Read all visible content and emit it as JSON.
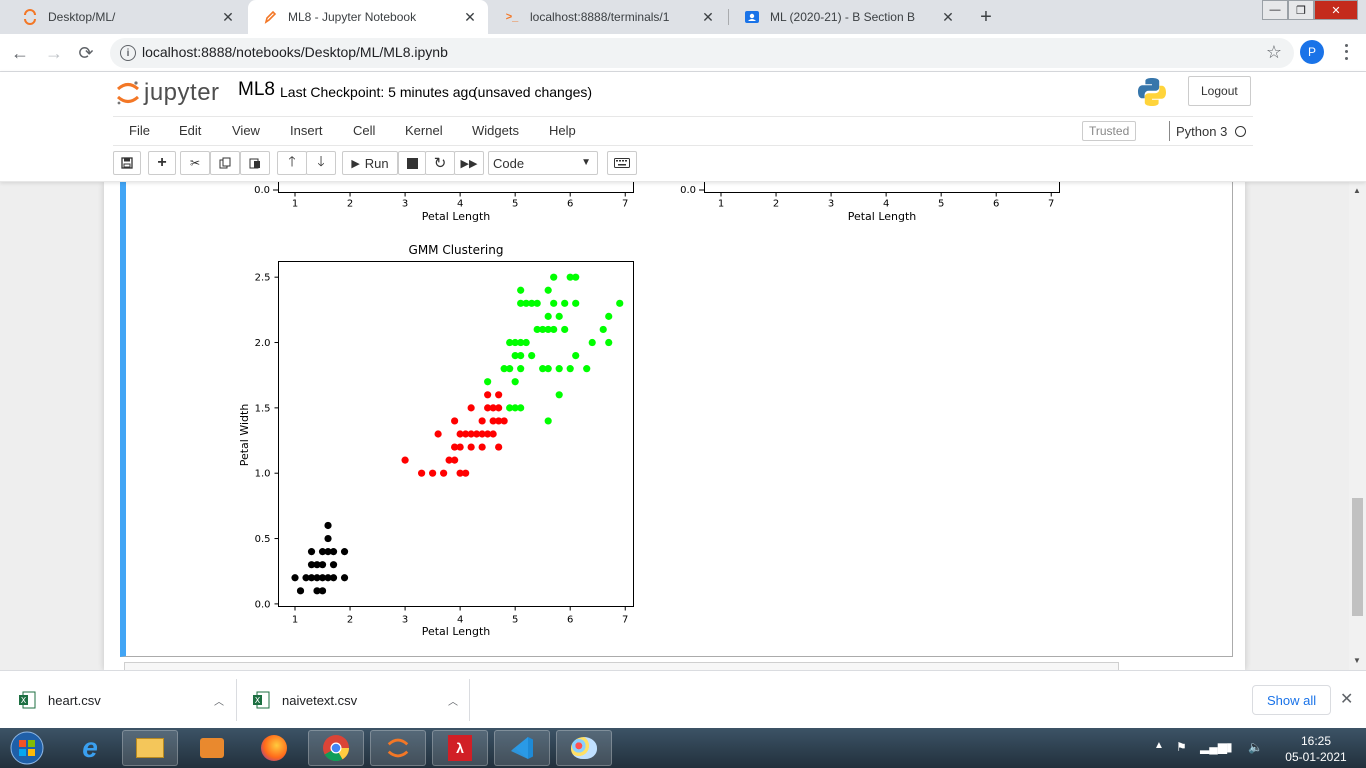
{
  "browser": {
    "tabs": [
      {
        "label": "Desktop/ML/",
        "active": false
      },
      {
        "label": "ML8 - Jupyter Notebook",
        "active": true
      },
      {
        "label": "localhost:8888/terminals/1",
        "active": false
      },
      {
        "label": "ML (2020-21) - B Section B",
        "active": false
      }
    ],
    "url": "localhost:8888/notebooks/Desktop/ML/ML8.ipynb",
    "profile_initial": "P"
  },
  "jupyter": {
    "logo_text": "jupyter",
    "notebook_name": "ML8",
    "checkpoint": "Last Checkpoint: 5 minutes ago",
    "unsaved": "(unsaved changes)",
    "logout": "Logout",
    "menu": [
      "File",
      "Edit",
      "View",
      "Insert",
      "Cell",
      "Kernel",
      "Widgets",
      "Help"
    ],
    "trusted": "Trusted",
    "kernel": "Python 3",
    "run_label": "Run",
    "cell_type": "Code"
  },
  "chart_data": [
    {
      "type": "scatter",
      "partial": true,
      "xlabel": "Petal Length",
      "xticks": [
        "1",
        "2",
        "3",
        "4",
        "5",
        "6",
        "7"
      ],
      "visible_yticks": [
        "0.0"
      ]
    },
    {
      "type": "scatter",
      "partial": true,
      "xlabel": "Petal Length",
      "xticks": [
        "1",
        "2",
        "3",
        "4",
        "5",
        "6",
        "7"
      ],
      "visible_yticks": [
        "0.0"
      ]
    },
    {
      "type": "scatter",
      "title": "GMM Clustering",
      "xlabel": "Petal Length",
      "ylabel": "Petal Width",
      "xlim": [
        0.7,
        7.15
      ],
      "ylim": [
        -0.02,
        2.62
      ],
      "xticks": [
        "1",
        "2",
        "3",
        "4",
        "5",
        "6",
        "7"
      ],
      "yticks": [
        "0.0",
        "0.5",
        "1.0",
        "1.5",
        "2.0",
        "2.5"
      ],
      "series": [
        {
          "color": "#000000",
          "points": [
            [
              1.1,
              0.1
            ],
            [
              1.4,
              0.1
            ],
            [
              1.5,
              0.1
            ],
            [
              1.0,
              0.2
            ],
            [
              1.2,
              0.2
            ],
            [
              1.3,
              0.2
            ],
            [
              1.4,
              0.2
            ],
            [
              1.5,
              0.2
            ],
            [
              1.6,
              0.2
            ],
            [
              1.7,
              0.2
            ],
            [
              1.9,
              0.2
            ],
            [
              1.3,
              0.3
            ],
            [
              1.4,
              0.3
            ],
            [
              1.5,
              0.3
            ],
            [
              1.7,
              0.3
            ],
            [
              1.3,
              0.4
            ],
            [
              1.5,
              0.4
            ],
            [
              1.6,
              0.4
            ],
            [
              1.7,
              0.4
            ],
            [
              1.9,
              0.4
            ],
            [
              1.6,
              0.5
            ],
            [
              1.6,
              0.6
            ]
          ]
        },
        {
          "color": "#ff0000",
          "points": [
            [
              3.3,
              1.0
            ],
            [
              3.5,
              1.0
            ],
            [
              3.7,
              1.0
            ],
            [
              4.0,
              1.0
            ],
            [
              4.1,
              1.0
            ],
            [
              3.0,
              1.1
            ],
            [
              3.8,
              1.1
            ],
            [
              3.9,
              1.1
            ],
            [
              3.9,
              1.2
            ],
            [
              4.0,
              1.2
            ],
            [
              4.2,
              1.2
            ],
            [
              4.4,
              1.2
            ],
            [
              4.7,
              1.2
            ],
            [
              3.6,
              1.3
            ],
            [
              4.0,
              1.3
            ],
            [
              4.1,
              1.3
            ],
            [
              4.2,
              1.3
            ],
            [
              4.3,
              1.3
            ],
            [
              4.4,
              1.3
            ],
            [
              4.5,
              1.3
            ],
            [
              4.6,
              1.3
            ],
            [
              3.9,
              1.4
            ],
            [
              4.4,
              1.4
            ],
            [
              4.6,
              1.4
            ],
            [
              4.7,
              1.4
            ],
            [
              4.8,
              1.4
            ],
            [
              4.2,
              1.5
            ],
            [
              4.5,
              1.5
            ],
            [
              4.6,
              1.5
            ],
            [
              4.7,
              1.5
            ],
            [
              4.5,
              1.6
            ],
            [
              4.7,
              1.6
            ]
          ]
        },
        {
          "color": "#00ff00",
          "points": [
            [
              5.6,
              1.4
            ],
            [
              4.5,
              1.7
            ],
            [
              5.0,
              1.7
            ],
            [
              4.9,
              1.5
            ],
            [
              5.0,
              1.5
            ],
            [
              5.1,
              1.5
            ],
            [
              5.8,
              1.6
            ],
            [
              4.8,
              1.8
            ],
            [
              4.9,
              1.8
            ],
            [
              5.1,
              1.8
            ],
            [
              5.5,
              1.8
            ],
            [
              5.6,
              1.8
            ],
            [
              5.8,
              1.8
            ],
            [
              6.0,
              1.8
            ],
            [
              6.3,
              1.8
            ],
            [
              5.0,
              1.9
            ],
            [
              5.1,
              1.9
            ],
            [
              5.3,
              1.9
            ],
            [
              6.1,
              1.9
            ],
            [
              4.9,
              2.0
            ],
            [
              5.0,
              2.0
            ],
            [
              5.1,
              2.0
            ],
            [
              5.2,
              2.0
            ],
            [
              6.4,
              2.0
            ],
            [
              6.7,
              2.0
            ],
            [
              5.4,
              2.1
            ],
            [
              5.5,
              2.1
            ],
            [
              5.6,
              2.1
            ],
            [
              5.7,
              2.1
            ],
            [
              5.9,
              2.1
            ],
            [
              6.6,
              2.1
            ],
            [
              5.6,
              2.2
            ],
            [
              5.8,
              2.2
            ],
            [
              6.7,
              2.2
            ],
            [
              5.1,
              2.3
            ],
            [
              5.2,
              2.3
            ],
            [
              5.3,
              2.3
            ],
            [
              5.4,
              2.3
            ],
            [
              5.7,
              2.3
            ],
            [
              5.9,
              2.3
            ],
            [
              6.1,
              2.3
            ],
            [
              6.9,
              2.3
            ],
            [
              5.1,
              2.4
            ],
            [
              5.6,
              2.4
            ],
            [
              5.7,
              2.5
            ],
            [
              6.0,
              2.5
            ],
            [
              6.1,
              2.5
            ]
          ]
        }
      ]
    }
  ],
  "downloads": [
    {
      "name": "heart.csv"
    },
    {
      "name": "naivetext.csv"
    }
  ],
  "show_all": "Show all",
  "clock": {
    "time": "16:25",
    "date": "05-01-2021"
  }
}
